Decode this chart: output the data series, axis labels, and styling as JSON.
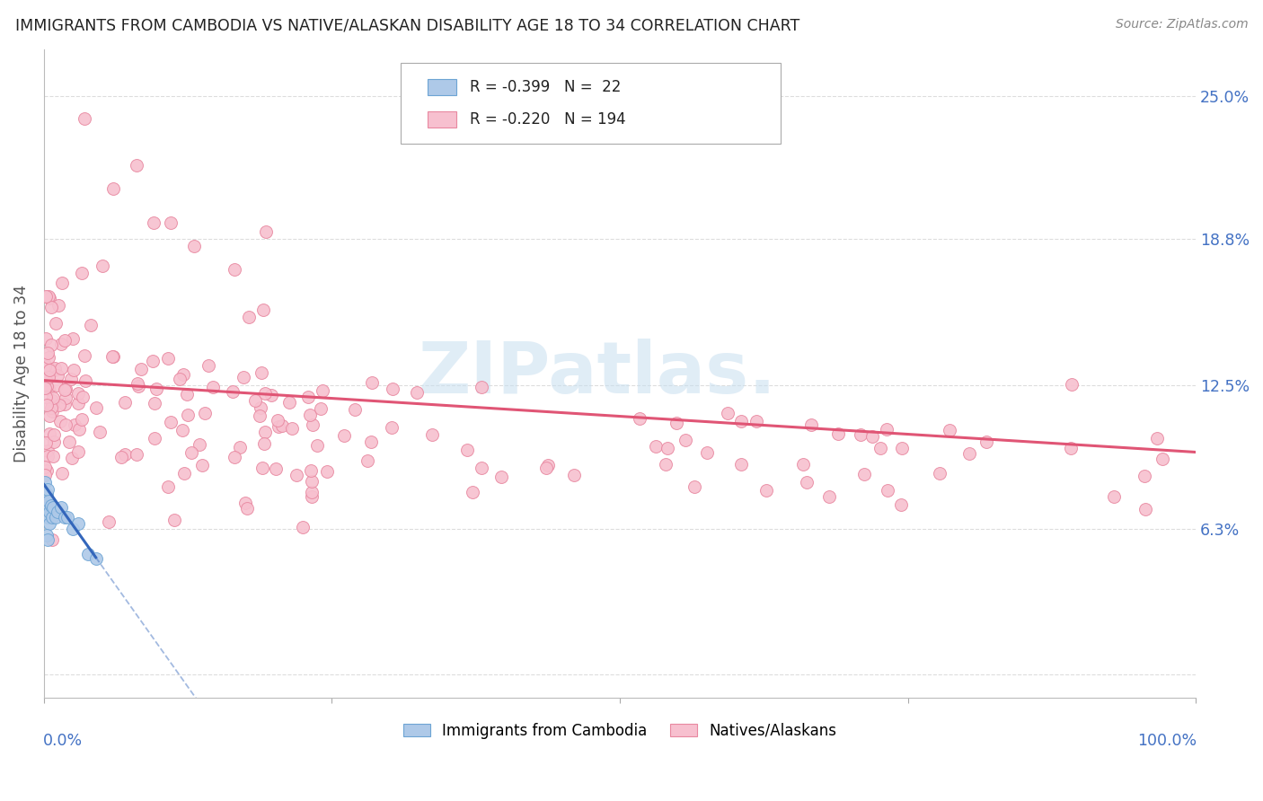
{
  "title": "IMMIGRANTS FROM CAMBODIA VS NATIVE/ALASKAN DISABILITY AGE 18 TO 34 CORRELATION CHART",
  "source": "Source: ZipAtlas.com",
  "ylabel": "Disability Age 18 to 34",
  "ytick_vals": [
    0.0,
    0.063,
    0.125,
    0.188,
    0.25
  ],
  "ytick_labels": [
    "",
    "6.3%",
    "12.5%",
    "18.8%",
    "25.0%"
  ],
  "legend_blue_r": "-0.399",
  "legend_blue_n": "22",
  "legend_pink_r": "-0.220",
  "legend_pink_n": "194",
  "legend_label_blue": "Immigrants from Cambodia",
  "legend_label_pink": "Natives/Alaskans",
  "blue_fill": "#aec9e8",
  "blue_edge": "#6da4d4",
  "blue_line": "#3366bb",
  "pink_fill": "#f7c0cf",
  "pink_edge": "#e888a0",
  "pink_line": "#e05575",
  "grid_color": "#dddddd",
  "title_color": "#222222",
  "source_color": "#888888",
  "axis_label_color": "#4472c4",
  "ylabel_color": "#555555",
  "watermark_color": "#c8dff0",
  "watermark_text": "ZIPatlas.",
  "xlim": [
    0.0,
    1.0
  ],
  "ylim": [
    -0.01,
    0.27
  ]
}
